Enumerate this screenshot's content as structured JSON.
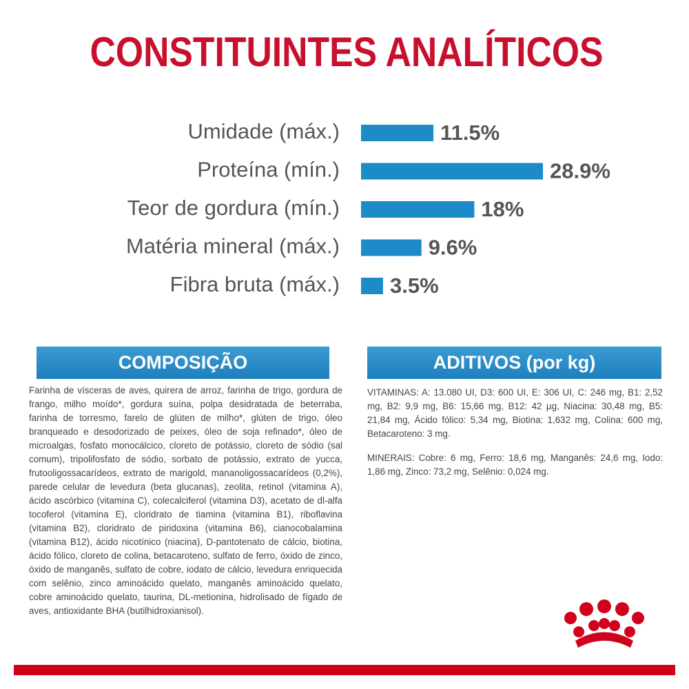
{
  "title": "CONSTITUINTES ANALÍTICOS",
  "chart_data": {
    "type": "bar",
    "categories": [
      "Umidade (máx.)",
      "Proteína (mín.)",
      "Teor de gordura (mín.)",
      "Matéria mineral (máx.)",
      "Fibra bruta (máx.)"
    ],
    "values": [
      11.5,
      28.9,
      18,
      9.6,
      3.5
    ],
    "value_labels": [
      "11.5%",
      "28.9%",
      "18%",
      "9.6%",
      "3.5%"
    ],
    "color": "#1e8bc9"
  },
  "composicao": {
    "heading": "COMPOSIÇÃO",
    "text": "Farinha de vísceras de aves, quirera de arroz, farinha de trigo, gordura de frango, milho moído*, gordura suína, polpa desidratada de beterraba, farinha de torresmo, farelo de glúten de milho*, glúten de trigo, óleo branqueado e desodorizado de peixes, óleo de soja refinado*, óleo de microalgas, fosfato monocálcico, cloreto de potássio, cloreto de sódio (sal comum), tripolifosfato de sódio, sorbato de potássio, extrato de yucca, frutooligossacarídeos, extrato de marigold, mananoligossacarídeos (0,2%), parede celular de levedura (beta glucanas), zeolita, retinol (vitamina A), ácido ascórbico (vitamina C), colecalciferol (vitamina D3), acetato de dl-alfa tocoferol (vitamina E), cloridrato de tiamina (vitamina B1), riboflavina (vitamina B2), cloridrato de piridoxina (vitamina B6), cianocobalamina (vitamina B12), ácido nicotínico (niacina), D-pantotenato de cálcio, biotina, ácido fólico, cloreto de colina, betacaroteno, sulfato de ferro, óxido de zinco, óxido de manganês, sulfato de cobre, iodato de cálcio, levedura enriquecida com selênio, zinco aminoácido quelato, manganês aminoácido quelato, cobre aminoácido quelato, taurina, DL-metionina, hidrolisado de fígado de aves, antioxidante BHA (butilhidroxianisol)."
  },
  "aditivos": {
    "heading": "ADITIVOS (por kg)",
    "vitaminas": "VITAMINAS: A: 13.080 UI, D3: 600 UI, E: 306 UI, C: 246 mg, B1: 2,52 mg, B2: 9,9 mg, B6: 15,66 mg, B12: 42 µg, Niacina: 30,48 mg, B5: 21,84 mg, Ácido fólico: 5,34 mg, Biotina: 1,632 mg, Colina: 600 mg, Betacaroteno: 3 mg.",
    "minerais": "MINERAIS: Cobre: 6 mg, Ferro: 18,6 mg, Manganês: 24,6 mg, Iodo: 1,86 mg, Zinco: 73,2 mg, Selênio: 0,024 mg."
  }
}
